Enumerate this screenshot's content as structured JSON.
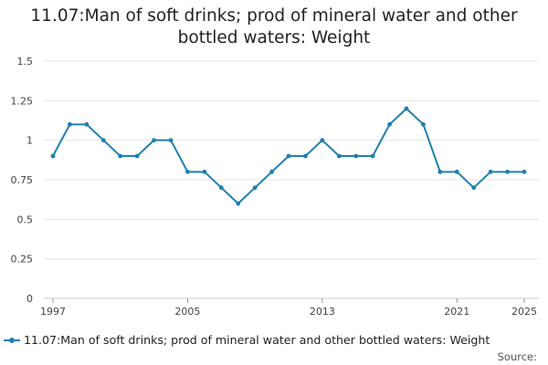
{
  "chart_data": {
    "type": "line",
    "title_lines": [
      "11.07:Man of soft drinks; prod of mineral water and other",
      "bottled waters: Weight"
    ],
    "xlabel": "",
    "ylabel": "",
    "x": [
      1997,
      1998,
      1999,
      2000,
      2001,
      2002,
      2003,
      2004,
      2005,
      2006,
      2007,
      2008,
      2009,
      2010,
      2011,
      2012,
      2013,
      2014,
      2015,
      2016,
      2017,
      2018,
      2019,
      2020,
      2021,
      2022,
      2023,
      2024,
      2025
    ],
    "series": [
      {
        "name": "11.07:Man of soft drinks; prod of mineral water and other bottled waters: Weight",
        "values": [
          0.9,
          1.1,
          1.1,
          1.0,
          0.9,
          0.9,
          1.0,
          1.0,
          0.8,
          0.8,
          0.7,
          0.6,
          0.7,
          0.8,
          0.9,
          0.9,
          1.0,
          0.9,
          0.9,
          0.9,
          1.1,
          1.2,
          1.1,
          0.8,
          0.8,
          0.7,
          0.8,
          0.8,
          0.8
        ],
        "color": "#1f7fb0"
      }
    ],
    "ylim": [
      0,
      1.5
    ],
    "yticks": [
      0,
      0.25,
      0.5,
      0.75,
      1,
      1.25,
      1.5
    ],
    "ytick_labels": [
      "0",
      "0.25",
      "0.5",
      "0.75",
      "1",
      "1.25",
      "1.5"
    ],
    "xticks": [
      1997,
      2005,
      2013,
      2021,
      2025
    ],
    "grid": true,
    "legend": "bottom-left"
  },
  "source_label": "Source:"
}
